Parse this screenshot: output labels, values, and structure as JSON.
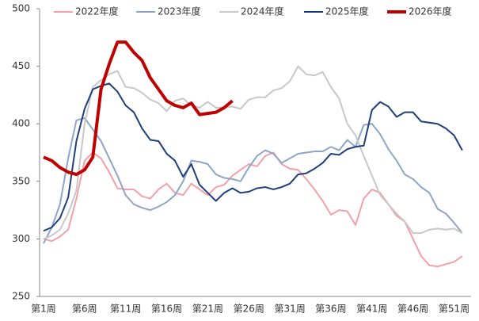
{
  "chart_data": {
    "type": "line",
    "categories": [
      "第1周",
      null,
      null,
      null,
      null,
      "第6周",
      null,
      null,
      null,
      null,
      "第11周",
      null,
      null,
      null,
      null,
      "第16周",
      null,
      null,
      null,
      null,
      "第21周",
      null,
      null,
      null,
      null,
      "第26周",
      null,
      null,
      null,
      null,
      "第31周",
      null,
      null,
      null,
      null,
      "第36周",
      null,
      null,
      null,
      null,
      "第41周",
      null,
      null,
      null,
      null,
      "第46周",
      null,
      null,
      null,
      null,
      "第51周",
      null
    ],
    "series": [
      {
        "name": "2022年度",
        "color": "#f4a0a8",
        "width": 2,
        "values": [
          300,
          298,
          302,
          308,
          335,
          368,
          375,
          370,
          358,
          344,
          343,
          343,
          337,
          335,
          343,
          348,
          340,
          338,
          348,
          343,
          338,
          345,
          347,
          355,
          360,
          365,
          363,
          372,
          375,
          365,
          361,
          360,
          352,
          343,
          333,
          321,
          325,
          324,
          312,
          335,
          343,
          340,
          330,
          320,
          315,
          300,
          285,
          277,
          276,
          278,
          280,
          285
        ]
      },
      {
        "name": "2023年度",
        "color": "#8fa5c8",
        "width": 2,
        "values": [
          296,
          310,
          330,
          370,
          403,
          405,
          395,
          385,
          370,
          355,
          338,
          330,
          327,
          325,
          328,
          332,
          338,
          350,
          368,
          367,
          365,
          356,
          353,
          352,
          350,
          362,
          372,
          377,
          374,
          366,
          370,
          374,
          375,
          376,
          376,
          380,
          377,
          386,
          380,
          399,
          400,
          391,
          378,
          368,
          356,
          352,
          345,
          340,
          326,
          322,
          314,
          305
        ]
      },
      {
        "name": "2024年度",
        "color": "#c8c8c8",
        "width": 2,
        "values": [
          300,
          303,
          308,
          322,
          342,
          400,
          432,
          438,
          443,
          446,
          432,
          431,
          427,
          421,
          418,
          411,
          420,
          422,
          416,
          414,
          419,
          414,
          414,
          415,
          413,
          421,
          423,
          423,
          429,
          431,
          437,
          450,
          443,
          442,
          445,
          432,
          422,
          400,
          390,
          372,
          355,
          338,
          330,
          322,
          315,
          305,
          305,
          308,
          309,
          308,
          309,
          305
        ]
      },
      {
        "name": "2025年度",
        "color": "#1f3f7a",
        "width": 2,
        "values": [
          307,
          310,
          318,
          336,
          385,
          413,
          430,
          433,
          435,
          428,
          416,
          410,
          396,
          386,
          385,
          374,
          368,
          354,
          365,
          347,
          340,
          333,
          340,
          344,
          340,
          341,
          344,
          345,
          343,
          345,
          348,
          356,
          357,
          361,
          366,
          374,
          373,
          378,
          380,
          381,
          412,
          419,
          415,
          406,
          410,
          410,
          402,
          401,
          400,
          396,
          390,
          377
        ]
      },
      {
        "name": "2026年度",
        "color": "#c00000",
        "width": 4,
        "values": [
          371,
          368,
          362,
          358,
          356,
          360,
          371,
          430,
          452,
          471,
          471,
          462,
          455,
          440,
          430,
          420,
          416,
          414,
          418,
          408,
          409,
          410,
          414,
          420,
          null,
          null,
          null,
          null,
          null,
          null,
          null,
          null,
          null,
          null,
          null,
          null,
          null,
          null,
          null,
          null,
          null,
          null,
          null,
          null,
          null,
          null,
          null,
          null,
          null,
          null,
          null,
          null
        ]
      }
    ],
    "ylim": [
      250,
      500
    ],
    "yticks": [
      250,
      300,
      350,
      400,
      450,
      500
    ],
    "grid": false,
    "legend": "top"
  }
}
